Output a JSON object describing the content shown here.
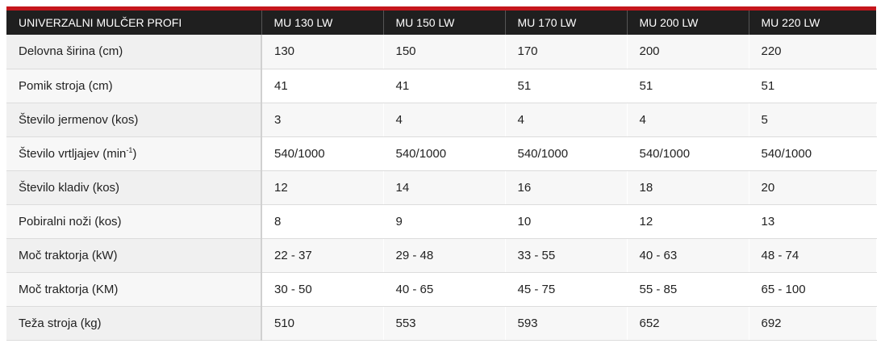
{
  "table": {
    "header": [
      "UNIVERZALNI MULČER PROFI",
      "MU 130 LW",
      "MU 150 LW",
      "MU 170 LW",
      "MU 200 LW",
      "MU 220 LW"
    ],
    "rows": [
      {
        "label": "Delovna širina (cm)",
        "values": [
          "130",
          "150",
          "170",
          "200",
          "220"
        ]
      },
      {
        "label": "Pomik stroja (cm)",
        "values": [
          "41",
          "41",
          "51",
          "51",
          "51"
        ]
      },
      {
        "label": "Število jermenov (kos)",
        "values": [
          "3",
          "4",
          "4",
          "4",
          "5"
        ]
      },
      {
        "label_prefix": "Število vrtljajev (min",
        "label_sup": "-1",
        "label_suffix": ")",
        "values": [
          "540/1000",
          "540/1000",
          "540/1000",
          "540/1000",
          "540/1000"
        ]
      },
      {
        "label": "Število kladiv (kos)",
        "values": [
          "12",
          "14",
          "16",
          "18",
          "20"
        ]
      },
      {
        "label": "Pobiralni noži (kos)",
        "values": [
          "8",
          "9",
          "10",
          "12",
          "13"
        ]
      },
      {
        "label": "Moč traktorja (kW)",
        "values": [
          "22 - 37",
          "29 - 48",
          "33 - 55",
          "40 - 63",
          "48 - 74"
        ]
      },
      {
        "label": "Moč traktorja (KM)",
        "values": [
          "30 - 50",
          "40 - 65",
          "45 - 75",
          "55 - 85",
          "65 - 100"
        ]
      },
      {
        "label": "Teža stroja (kg)",
        "values": [
          "510",
          "553",
          "593",
          "652",
          "692"
        ]
      }
    ]
  },
  "colors": {
    "accent": "#c4161c",
    "header_bg": "#1f1f1f"
  }
}
